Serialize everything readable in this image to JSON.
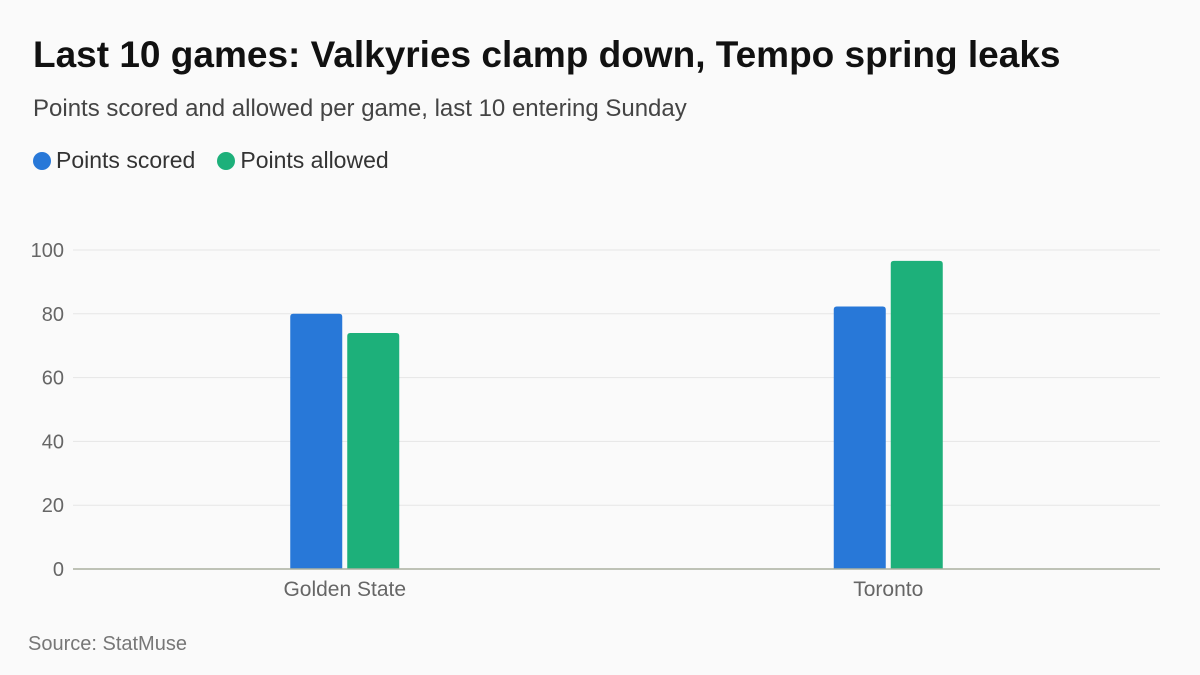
{
  "title": "Last 10 games: Valkyries clamp down, Tempo spring leaks",
  "subtitle": "Points scored and allowed per game, last 10 entering Sunday",
  "source": "Source: StatMuse",
  "legend": [
    {
      "label": "Points scored",
      "color": "#2878d8"
    },
    {
      "label": "Points allowed",
      "color": "#1db07a"
    }
  ],
  "chart_data": {
    "type": "bar",
    "categories": [
      "Golden State",
      "Toronto"
    ],
    "series": [
      {
        "name": "Points scored",
        "color": "#2878d8",
        "values": [
          80.0,
          82.3
        ]
      },
      {
        "name": "Points allowed",
        "color": "#1db07a",
        "values": [
          74.0,
          96.6
        ]
      }
    ],
    "ylim": [
      0,
      100
    ],
    "yticks": [
      0,
      20,
      40,
      60,
      80,
      100
    ],
    "grid": true,
    "legend_position": "top-left",
    "xlabel": "",
    "ylabel": ""
  }
}
